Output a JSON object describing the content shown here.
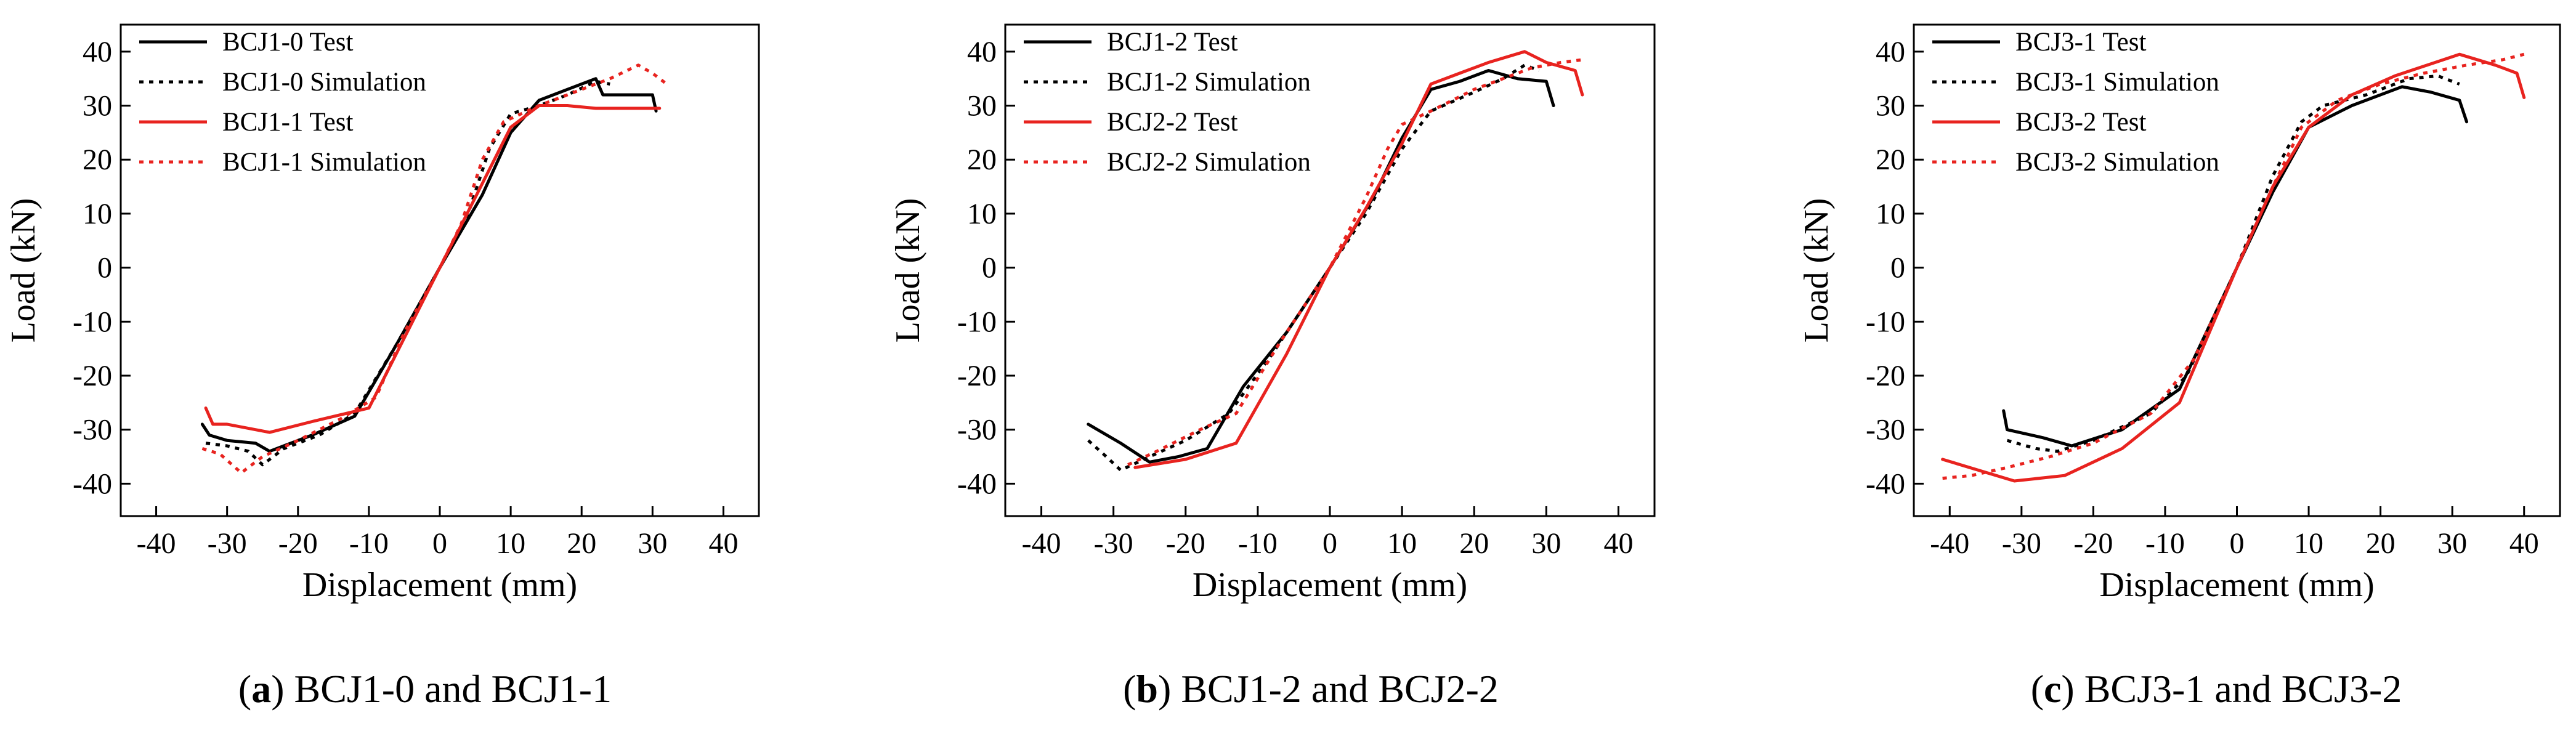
{
  "figure": {
    "panels": [
      {
        "letter": "a",
        "caption": "BCJ1-0 and BCJ1-1"
      },
      {
        "letter": "b",
        "caption": "BCJ1-2 and BCJ2-2"
      },
      {
        "letter": "c",
        "caption": "BCJ3-1 and BCJ3-2"
      }
    ]
  },
  "colors": {
    "black": "#000000",
    "red": "#e8231f"
  },
  "chart_data": [
    {
      "type": "line",
      "title": "",
      "xlabel": "Displacement (mm)",
      "ylabel": "Load (kN)",
      "xlim": [
        -45,
        45
      ],
      "ylim": [
        -46,
        45
      ],
      "xticks": [
        -40,
        -30,
        -20,
        -10,
        0,
        10,
        20,
        30,
        40
      ],
      "yticks": [
        40,
        30,
        20,
        10,
        0,
        -10,
        -20,
        -30,
        -40
      ],
      "legend": "top-left",
      "series": [
        {
          "name": "BCJ1-0 Test",
          "color": "black",
          "style": "solid",
          "points": [
            [
              -33.5,
              -29
            ],
            [
              -32.5,
              -31
            ],
            [
              -30,
              -32
            ],
            [
              -26,
              -32.5
            ],
            [
              -24,
              -34
            ],
            [
              -22,
              -33
            ],
            [
              -18,
              -31
            ],
            [
              -12,
              -27.5
            ],
            [
              -6,
              -14
            ],
            [
              0,
              0
            ],
            [
              6,
              13.5
            ],
            [
              10,
              25
            ],
            [
              14,
              31
            ],
            [
              18,
              33
            ],
            [
              22,
              35
            ],
            [
              23,
              32
            ],
            [
              26,
              32
            ],
            [
              30,
              32
            ],
            [
              30.5,
              29
            ]
          ]
        },
        {
          "name": "BCJ1-0 Simulation",
          "color": "black",
          "style": "dotted",
          "points": [
            [
              -33,
              -32.5
            ],
            [
              -30,
              -33
            ],
            [
              -27,
              -34
            ],
            [
              -25,
              -36.5
            ],
            [
              -22,
              -33.5
            ],
            [
              -17,
              -31
            ],
            [
              -12,
              -27
            ],
            [
              -6,
              -14
            ],
            [
              0,
              0
            ],
            [
              4,
              10
            ],
            [
              7,
              22
            ],
            [
              10,
              28.5
            ],
            [
              14,
              30
            ],
            [
              18,
              32
            ],
            [
              22,
              34.5
            ],
            [
              24,
              34
            ]
          ]
        },
        {
          "name": "BCJ1-1 Test",
          "color": "red",
          "style": "solid",
          "points": [
            [
              -33,
              -26
            ],
            [
              -32,
              -29
            ],
            [
              -30,
              -29
            ],
            [
              -24,
              -30.5
            ],
            [
              -18,
              -28.5
            ],
            [
              -10,
              -26
            ],
            [
              -5,
              -13
            ],
            [
              0,
              0
            ],
            [
              5,
              13
            ],
            [
              10,
              26
            ],
            [
              14,
              30
            ],
            [
              18,
              30
            ],
            [
              22,
              29.5
            ],
            [
              26,
              29.5
            ],
            [
              31,
              29.5
            ]
          ]
        },
        {
          "name": "BCJ1-1 Simulation",
          "color": "red",
          "style": "dotted",
          "points": [
            [
              -33.5,
              -33.5
            ],
            [
              -31,
              -34.5
            ],
            [
              -28,
              -38
            ],
            [
              -25,
              -35
            ],
            [
              -20,
              -32
            ],
            [
              -14,
              -28
            ],
            [
              -9,
              -24
            ],
            [
              -5,
              -12
            ],
            [
              0,
              0
            ],
            [
              3,
              8
            ],
            [
              6,
              20
            ],
            [
              9,
              27
            ],
            [
              14,
              30
            ],
            [
              20,
              33
            ],
            [
              24,
              35
            ],
            [
              28,
              37.5
            ],
            [
              30,
              36
            ],
            [
              32,
              34
            ]
          ]
        }
      ]
    },
    {
      "type": "line",
      "title": "",
      "xlabel": "Displacement (mm)",
      "ylabel": "Load (kN)",
      "xlim": [
        -45,
        45
      ],
      "ylim": [
        -46,
        45
      ],
      "xticks": [
        -40,
        -30,
        -20,
        -10,
        0,
        10,
        20,
        30,
        40
      ],
      "yticks": [
        40,
        30,
        20,
        10,
        0,
        -10,
        -20,
        -30,
        -40
      ],
      "legend": "top-left",
      "series": [
        {
          "name": "BCJ1-2 Test",
          "color": "black",
          "style": "solid",
          "points": [
            [
              -33.5,
              -29
            ],
            [
              -29,
              -32.5
            ],
            [
              -25,
              -36
            ],
            [
              -21,
              -35
            ],
            [
              -17,
              -33.5
            ],
            [
              -12,
              -22
            ],
            [
              -6,
              -12
            ],
            [
              0,
              0
            ],
            [
              6,
              13
            ],
            [
              10,
              24
            ],
            [
              14,
              33
            ],
            [
              18,
              34.5
            ],
            [
              22,
              36.5
            ],
            [
              26,
              35
            ],
            [
              30,
              34.5
            ],
            [
              31,
              30
            ]
          ]
        },
        {
          "name": "BCJ1-2 Simulation",
          "color": "black",
          "style": "dotted",
          "points": [
            [
              -33.5,
              -32
            ],
            [
              -31,
              -35
            ],
            [
              -29,
              -37.5
            ],
            [
              -25,
              -35
            ],
            [
              -20,
              -32
            ],
            [
              -14,
              -27
            ],
            [
              -8,
              -16
            ],
            [
              0,
              0
            ],
            [
              5,
              10
            ],
            [
              10,
              22
            ],
            [
              14,
              29
            ],
            [
              20,
              32.5
            ],
            [
              24,
              35
            ],
            [
              27,
              37.5
            ],
            [
              29,
              36.5
            ]
          ]
        },
        {
          "name": "BCJ2-2 Test",
          "color": "red",
          "style": "solid",
          "points": [
            [
              -27,
              -37
            ],
            [
              -20,
              -35.5
            ],
            [
              -13,
              -32.5
            ],
            [
              -6,
              -16
            ],
            [
              0,
              0
            ],
            [
              5,
              11
            ],
            [
              10,
              23
            ],
            [
              14,
              34
            ],
            [
              18,
              36
            ],
            [
              22,
              38
            ],
            [
              27,
              40
            ],
            [
              30,
              38
            ],
            [
              34,
              36.5
            ],
            [
              35,
              32
            ]
          ]
        },
        {
          "name": "BCJ2-2 Simulation",
          "color": "red",
          "style": "dotted",
          "points": [
            [
              -28,
              -36.5
            ],
            [
              -24,
              -34
            ],
            [
              -18,
              -30
            ],
            [
              -13,
              -27
            ],
            [
              -7,
              -14
            ],
            [
              0,
              0
            ],
            [
              5,
              13
            ],
            [
              8,
              22
            ],
            [
              10,
              26.5
            ],
            [
              14,
              29
            ],
            [
              20,
              33
            ],
            [
              24,
              35
            ],
            [
              28,
              37
            ],
            [
              32,
              38
            ],
            [
              35,
              38.5
            ]
          ]
        }
      ]
    },
    {
      "type": "line",
      "title": "",
      "xlabel": "Displacement (mm)",
      "ylabel": "Load (kN)",
      "xlim": [
        -45,
        45
      ],
      "ylim": [
        -46,
        45
      ],
      "xticks": [
        -40,
        -30,
        -20,
        -10,
        0,
        10,
        20,
        30,
        40
      ],
      "yticks": [
        40,
        30,
        20,
        10,
        0,
        -10,
        -20,
        -30,
        -40
      ],
      "legend": "top-left",
      "series": [
        {
          "name": "BCJ3-1 Test",
          "color": "black",
          "style": "solid",
          "points": [
            [
              -32.5,
              -26.5
            ],
            [
              -32,
              -30
            ],
            [
              -27,
              -31.5
            ],
            [
              -23,
              -33
            ],
            [
              -16,
              -30
            ],
            [
              -8,
              -22.5
            ],
            [
              0,
              0
            ],
            [
              5,
              14
            ],
            [
              10,
              26
            ],
            [
              16,
              30
            ],
            [
              23,
              33.5
            ],
            [
              27,
              32.5
            ],
            [
              31,
              31
            ],
            [
              32,
              27
            ]
          ]
        },
        {
          "name": "BCJ3-1 Simulation",
          "color": "black",
          "style": "dotted",
          "points": [
            [
              -32,
              -32
            ],
            [
              -28,
              -33.5
            ],
            [
              -25,
              -34
            ],
            [
              -20,
              -32
            ],
            [
              -12,
              -27
            ],
            [
              -7,
              -20
            ],
            [
              0,
              0
            ],
            [
              5,
              17
            ],
            [
              9,
              27
            ],
            [
              12,
              30
            ],
            [
              18,
              32
            ],
            [
              24,
              35
            ],
            [
              28,
              35.5
            ],
            [
              31,
              34
            ]
          ]
        },
        {
          "name": "BCJ3-2 Test",
          "color": "red",
          "style": "solid",
          "points": [
            [
              -41,
              -35.5
            ],
            [
              -36,
              -37.5
            ],
            [
              -31,
              -39.5
            ],
            [
              -24,
              -38.5
            ],
            [
              -16,
              -33.5
            ],
            [
              -8,
              -25
            ],
            [
              0,
              0
            ],
            [
              5,
              15
            ],
            [
              10,
              26
            ],
            [
              16,
              32
            ],
            [
              22,
              35.5
            ],
            [
              31,
              39.5
            ],
            [
              36,
              37.5
            ],
            [
              39,
              36
            ],
            [
              40,
              31.5
            ]
          ]
        },
        {
          "name": "BCJ3-2 Simulation",
          "color": "red",
          "style": "dotted",
          "points": [
            [
              -41,
              -39
            ],
            [
              -37,
              -38.5
            ],
            [
              -32,
              -37
            ],
            [
              -26,
              -35
            ],
            [
              -20,
              -32.5
            ],
            [
              -12,
              -27
            ],
            [
              -6,
              -17
            ],
            [
              0,
              0
            ],
            [
              5,
              15
            ],
            [
              9,
              26
            ],
            [
              14,
              31
            ],
            [
              20,
              34
            ],
            [
              26,
              36
            ],
            [
              32,
              37.5
            ],
            [
              37,
              38.5
            ],
            [
              40,
              39.5
            ]
          ]
        }
      ]
    }
  ]
}
